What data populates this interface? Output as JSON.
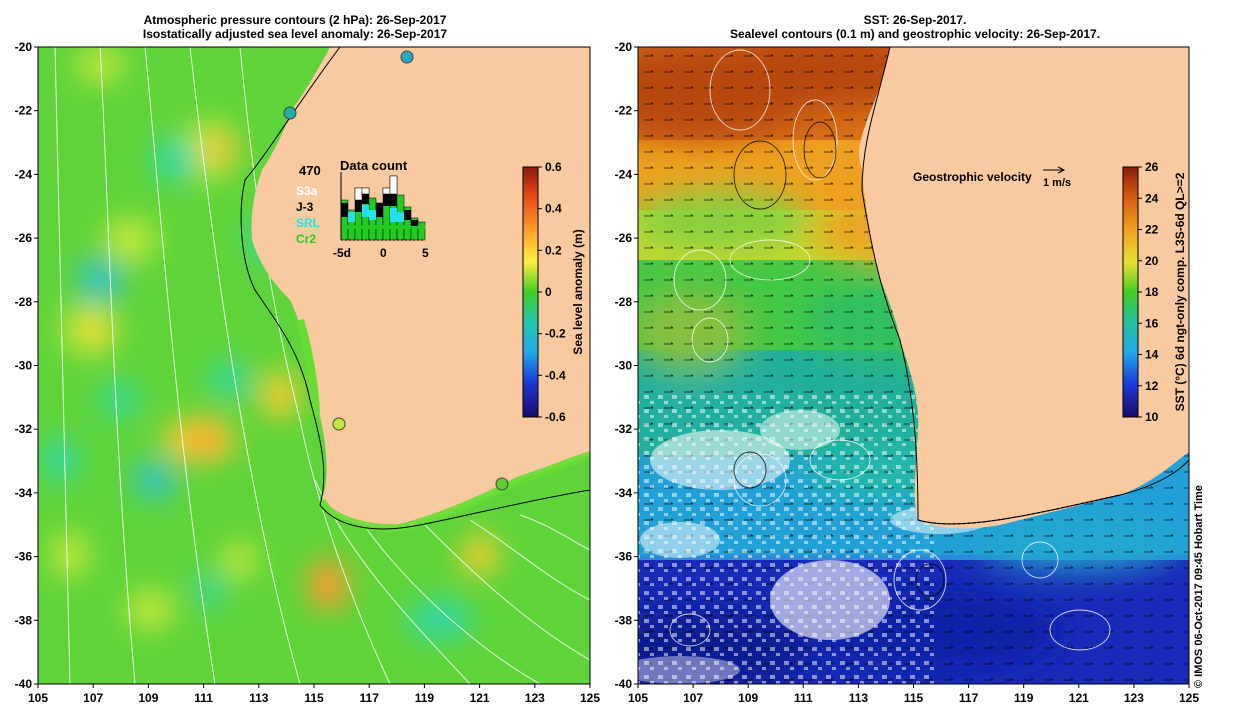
{
  "left_panel": {
    "title_line1": "Atmospheric pressure contours (2 hPa): 26-Sep-2017",
    "title_line2": "Isostatically adjusted sea level anomaly: 26-Sep-2017",
    "x_ticks": [
      "105",
      "107",
      "109",
      "111",
      "113",
      "115",
      "117",
      "119",
      "121",
      "123",
      "125"
    ],
    "y_ticks": [
      "-20",
      "-22",
      "-24",
      "-26",
      "-28",
      "-30",
      "-32",
      "-34",
      "-36",
      "-38",
      "-40"
    ],
    "colorbar": {
      "label": "Sea level anomaly (m)",
      "ticks": [
        "0.6",
        "0.4",
        "0.2",
        "0",
        "-0.2",
        "-0.4",
        "-0.6"
      ]
    },
    "data_count": {
      "title": "Data count",
      "total": "470",
      "missions": [
        {
          "name": "S3a",
          "color": "#ffffff"
        },
        {
          "name": "J-3",
          "color": "#000000"
        },
        {
          "name": "SRL",
          "color": "#22e0f0"
        },
        {
          "name": "Cr2",
          "color": "#22cc22"
        }
      ],
      "x_ticks": [
        "-5d",
        "0",
        "5"
      ]
    }
  },
  "right_panel": {
    "title_line1": "SST: 26-Sep-2017.",
    "title_line2": "Sealevel contours (0.1 m) and geostrophic velocity: 26-Sep-2017.",
    "x_ticks": [
      "105",
      "107",
      "109",
      "111",
      "113",
      "115",
      "117",
      "119",
      "121",
      "123",
      "125"
    ],
    "y_ticks": [
      "-20",
      "-22",
      "-24",
      "-26",
      "-28",
      "-30",
      "-32",
      "-34",
      "-36",
      "-38",
      "-40"
    ],
    "legend_label": "Geostrophic velocity",
    "legend_scale": "1 m/s",
    "colorbar": {
      "label": "SST (°C) 6d ngt-only comp. L3S-6d QL>=2",
      "ticks": [
        "26",
        "24",
        "22",
        "20",
        "18",
        "16",
        "14",
        "12",
        "10"
      ]
    }
  },
  "credit": "© IMOS 06-Oct-2017 09:45 Hobart Time",
  "colors": {
    "land": "#f9c9a0",
    "ocean_green": "#66dd33",
    "coastline": "#000000"
  }
}
